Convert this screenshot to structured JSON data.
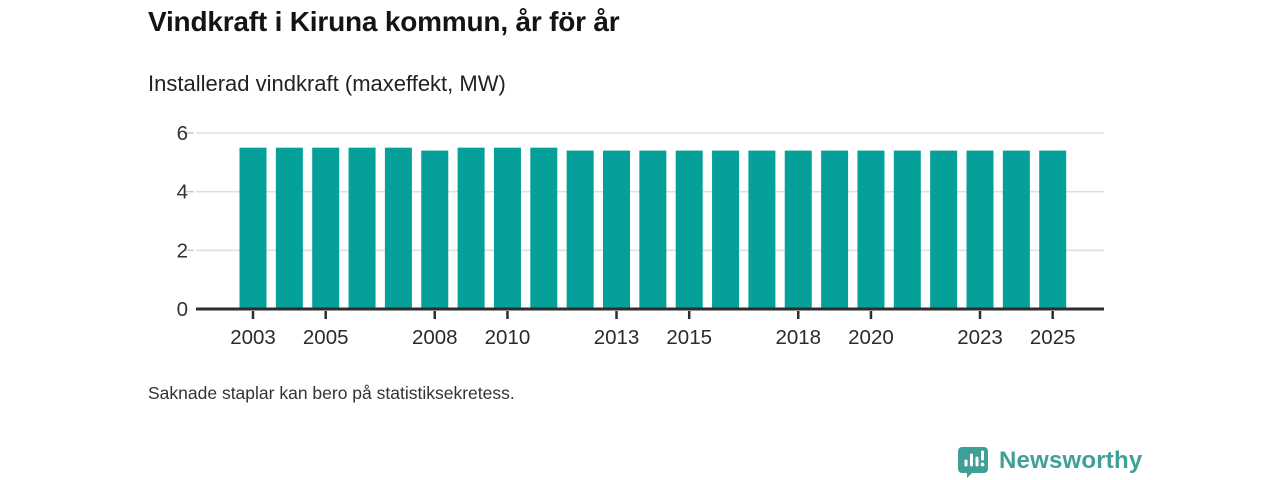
{
  "header": {
    "title": "Vindkraft i Kiruna kommun, år för år",
    "subtitle": "Installerad vindkraft (maxeffekt, MW)"
  },
  "footnote": "Saknade staplar kan bero på statistiksekretess.",
  "brand": {
    "name": "Newsworthy",
    "logo_icon": "bar-chart-speech-bubble-icon",
    "color": "#3fa098"
  },
  "colors": {
    "bar": "#04a099",
    "axis": "#2d2d2d",
    "gridline": "#e0e0e0",
    "tick_minor": "#cccccc",
    "label_text": "#333333"
  },
  "chart_data": {
    "type": "bar",
    "title": "Vindkraft i Kiruna kommun, år för år",
    "subtitle": "Installerad vindkraft (maxeffekt, MW)",
    "unit": "MW",
    "categories": [
      2003,
      2004,
      2005,
      2006,
      2007,
      2008,
      2009,
      2010,
      2011,
      2012,
      2013,
      2014,
      2015,
      2016,
      2017,
      2018,
      2019,
      2020,
      2021,
      2022,
      2023,
      2024,
      2025
    ],
    "values": [
      5.5,
      5.5,
      5.5,
      5.5,
      5.5,
      5.4,
      5.5,
      5.5,
      5.5,
      5.4,
      5.4,
      5.4,
      5.4,
      5.4,
      5.4,
      5.4,
      5.4,
      5.4,
      5.4,
      5.4,
      5.4,
      5.4,
      5.4
    ],
    "ylim": [
      0,
      6
    ],
    "yticks": [
      0,
      2,
      4,
      6
    ],
    "xtick_labels": [
      "2003",
      "2005",
      "2008",
      "2010",
      "2013",
      "2015",
      "2018",
      "2020",
      "2023",
      "2025"
    ],
    "grid": "horizontal gridlines at y=2,4,6; dark baseline at y=0",
    "legend": "none"
  }
}
